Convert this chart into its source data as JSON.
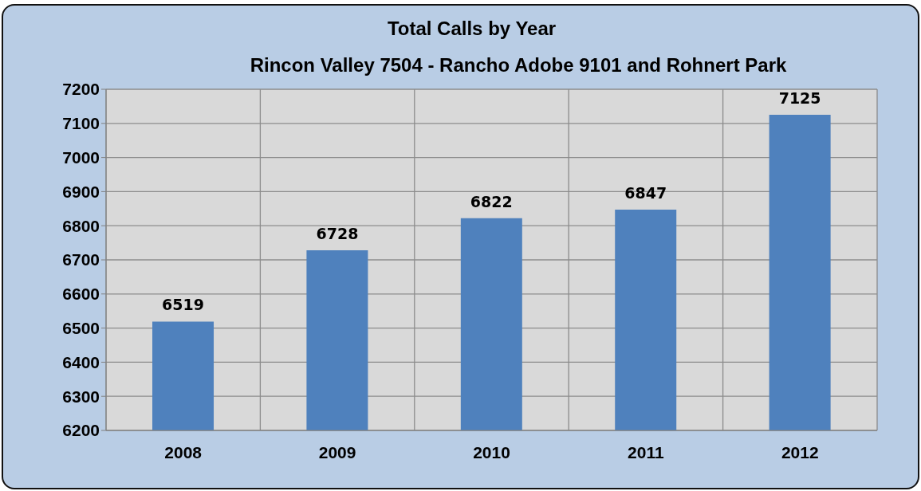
{
  "chart_data": {
    "type": "bar",
    "title": "Total Calls by Year",
    "subtitle": "Rincon Valley 7504 - Rancho Adobe 9101 and Rohnert Park",
    "categories": [
      "2008",
      "2009",
      "2010",
      "2011",
      "2012"
    ],
    "values": [
      6519,
      6728,
      6822,
      6847,
      7125
    ],
    "color": "#4f81bd",
    "ylim": [
      6200,
      7200
    ],
    "yticks": [
      6200,
      6300,
      6400,
      6500,
      6600,
      6700,
      6800,
      6900,
      7000,
      7100,
      7200
    ],
    "grid": true,
    "data_labels": true
  }
}
